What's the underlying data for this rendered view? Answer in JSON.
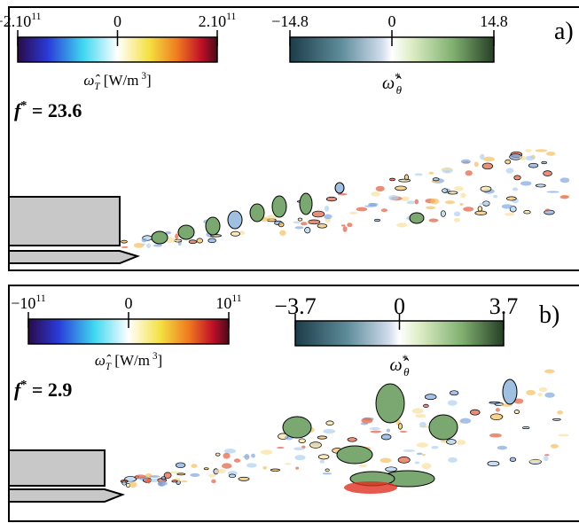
{
  "panels": [
    {
      "label": "a)",
      "f_symbol": "f",
      "f_sup": "*",
      "f_value": " = 23.6",
      "colorbars": [
        {
          "ticks": [
            {
              "base": "−2.10",
              "exp": "11"
            },
            {
              "base": "0"
            },
            {
              "base": "2.10",
              "exp": "11"
            }
          ],
          "label": {
            "symbol": "ω̂",
            "sub": "T",
            "unit": " [W/m",
            "unit_sup": "3",
            "close": "]"
          }
        },
        {
          "ticks": [
            {
              "base": "−14.8"
            },
            {
              "base": "0"
            },
            {
              "base": "14.8"
            }
          ],
          "label": {
            "symbol": "ω̂",
            "sup": "*",
            "sub": "θ"
          }
        }
      ]
    },
    {
      "label": "b)",
      "f_symbol": "f",
      "f_sup": "*",
      "f_value": " = 2.9",
      "colorbars": [
        {
          "ticks": [
            {
              "base": "−10",
              "exp": "11"
            },
            {
              "base": "0"
            },
            {
              "base": "10",
              "exp": "11"
            }
          ],
          "label": {
            "symbol": "ω̂",
            "sub": "T",
            "unit": " [W/m",
            "unit_sup": "3",
            "close": "]"
          }
        },
        {
          "ticks": [
            {
              "base": "−3.7"
            },
            {
              "base": "0"
            },
            {
              "base": "3.7"
            }
          ],
          "label": {
            "symbol": "ω̂",
            "sup": "*",
            "sub": "θ"
          }
        }
      ]
    }
  ]
}
